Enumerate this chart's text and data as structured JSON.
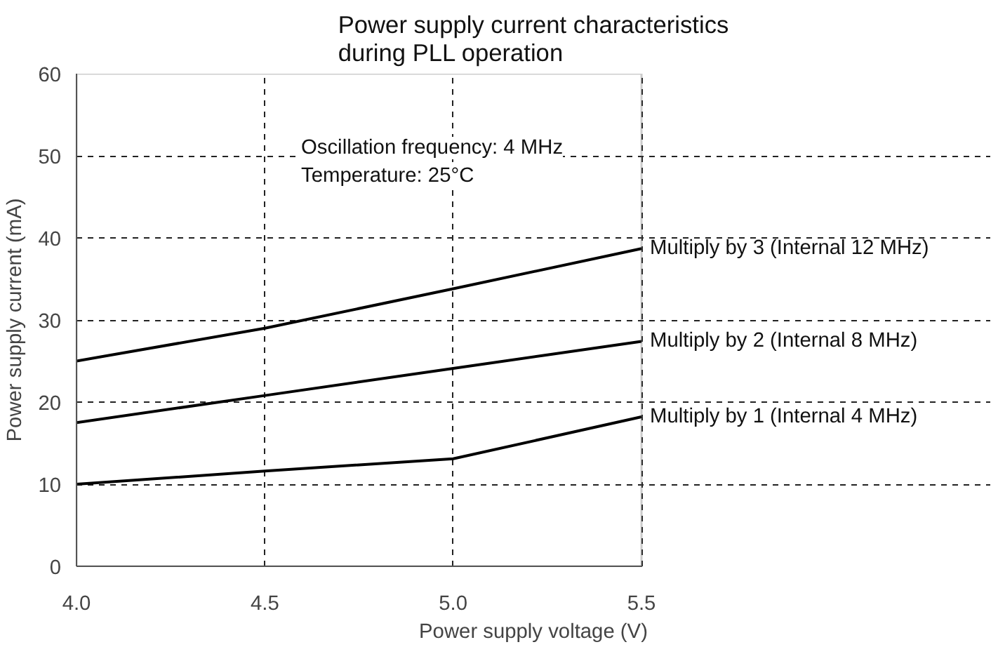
{
  "chart_data": {
    "type": "line",
    "title": "Power supply current characteristics\nduring PLL operation",
    "xlabel": "Power supply voltage (V)",
    "ylabel": "Power supply current (mA)",
    "x": [
      4.0,
      4.5,
      5.0,
      5.5
    ],
    "series": [
      {
        "name": "Multiply by 3 (Internal 12 MHz)",
        "color": "#000000",
        "values": [
          25,
          29,
          33.8,
          38.7
        ]
      },
      {
        "name": "Multiply by 2 (Internal 8 MHz)",
        "color": "#000000",
        "values": [
          17.5,
          20.8,
          24.1,
          27.4
        ]
      },
      {
        "name": "Multiply by 1 (Internal 4 MHz)",
        "color": "#000000",
        "values": [
          10,
          11.6,
          13.1,
          18.2
        ]
      }
    ],
    "xlim": [
      4.0,
      5.5
    ],
    "xticks": [
      {
        "value": 4.0,
        "label": "4.0"
      },
      4.5,
      {
        "value": 5.0,
        "label": "5.0"
      },
      5.5
    ],
    "ylim": [
      0,
      60
    ],
    "yticks": [
      0,
      10,
      20,
      30,
      40,
      50,
      60
    ],
    "annotations": [
      "Oscillation frequency: 4 MHz",
      "Temperature: 25°C"
    ],
    "grid": true,
    "legend": false,
    "line_style": "solid"
  }
}
